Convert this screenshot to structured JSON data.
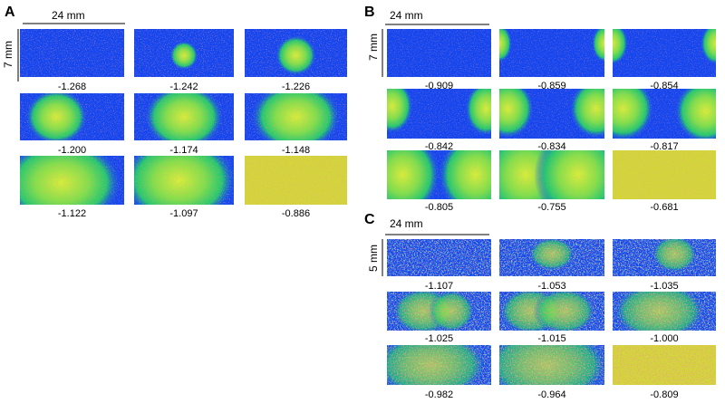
{
  "panels": [
    {
      "letter": "A",
      "width_label": "24 mm",
      "height_label": "7 mm",
      "labels": [
        "-1.268",
        "-1.242",
        "-1.226",
        "-1.200",
        "-1.174",
        "-1.148",
        "-1.122",
        "-1.097",
        "-0.886"
      ]
    },
    {
      "letter": "B",
      "width_label": "24 mm",
      "height_label": "7 mm",
      "labels": [
        "-0.909",
        "-0.859",
        "-0.854",
        "-0.842",
        "-0.834",
        "-0.817",
        "-0.805",
        "-0.755",
        "-0.681"
      ]
    },
    {
      "letter": "C",
      "width_label": "24 mm",
      "height_label": "5 mm",
      "labels": [
        "-1.107",
        "-1.053",
        "-1.035",
        "-1.025",
        "-1.015",
        "-1.000",
        "-0.982",
        "-0.964",
        "-0.809"
      ]
    }
  ]
}
